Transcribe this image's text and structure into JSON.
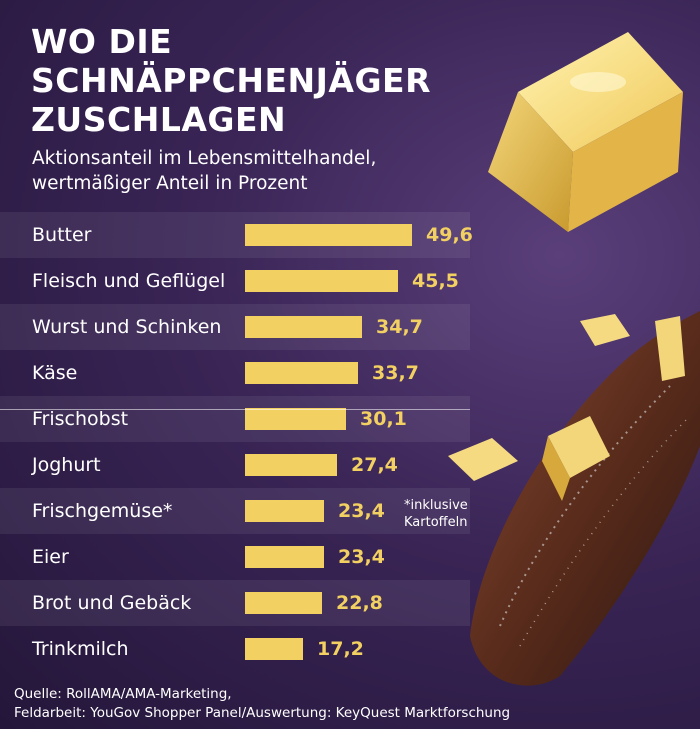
{
  "header": {
    "title_line1": "WO DIE",
    "title_line2": "SCHNÄPPCHENJÄGER",
    "title_line3": "ZUSCHLAGEN",
    "subtitle_line1": "Aktionsanteil im Lebensmittelhandel,",
    "subtitle_line2": "wertmäßiger Anteil in Prozent"
  },
  "chart_data": {
    "type": "bar",
    "orientation": "horizontal",
    "categories": [
      "Butter",
      "Fleisch und Geflügel",
      "Wurst und Schinken",
      "Käse",
      "Frischobst",
      "Joghurt",
      "Frischgemüse*",
      "Eier",
      "Brot und Gebäck",
      "Trinkmilch"
    ],
    "values": [
      49.6,
      45.5,
      34.7,
      33.7,
      30.1,
      27.4,
      23.4,
      23.4,
      22.8,
      17.2
    ],
    "value_labels": [
      "49,6",
      "45,5",
      "34,7",
      "33,7",
      "30,1",
      "27,4",
      "23,4",
      "23,4",
      "22,8",
      "17,2"
    ],
    "bar_color": "#f2d061",
    "grid": false,
    "legend": "none"
  },
  "footnote": {
    "line1": "*inklusive",
    "line2": "Kartoffeln"
  },
  "source": {
    "line1": "Quelle: RollAMA/AMA-Marketing,",
    "line2": "Feldarbeit: YouGov Shopper Panel/Auswertung: KeyQuest Marktforschung"
  },
  "images": {
    "cheese_icon": "butter-block",
    "steak_icon": "grilled-steak-with-cheese"
  }
}
